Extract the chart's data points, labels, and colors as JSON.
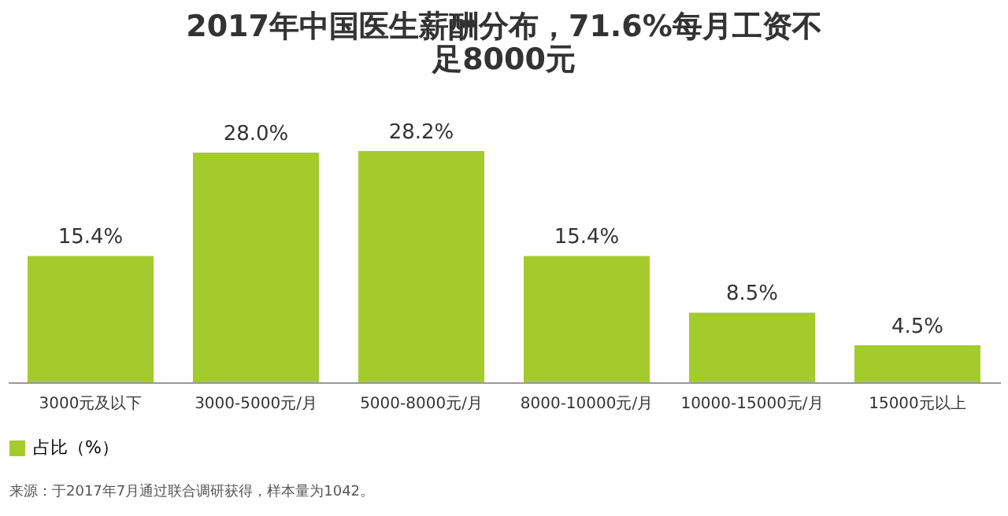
{
  "chart_data": {
    "type": "bar",
    "title": "2017年中国医生薪酬分布，71.6%每月工资不足8000元",
    "categories": [
      "3000元及以下",
      "3000-5000元/月",
      "5000-8000元/月",
      "8000-10000元/月",
      "10000-15000元/月",
      "15000元以上"
    ],
    "series": [
      {
        "name": "占比（%）",
        "color": "#a4cb2c",
        "values": [
          15.4,
          28.0,
          28.2,
          15.4,
          8.5,
          4.5
        ],
        "value_labels": [
          "15.4%",
          "28.0%",
          "28.2%",
          "15.4%",
          "8.5%",
          "4.5%"
        ]
      }
    ],
    "legend": "bottom",
    "annotations": [
      "来源：于2017年7月通过联合调研获得，样本量为1042。"
    ]
  }
}
